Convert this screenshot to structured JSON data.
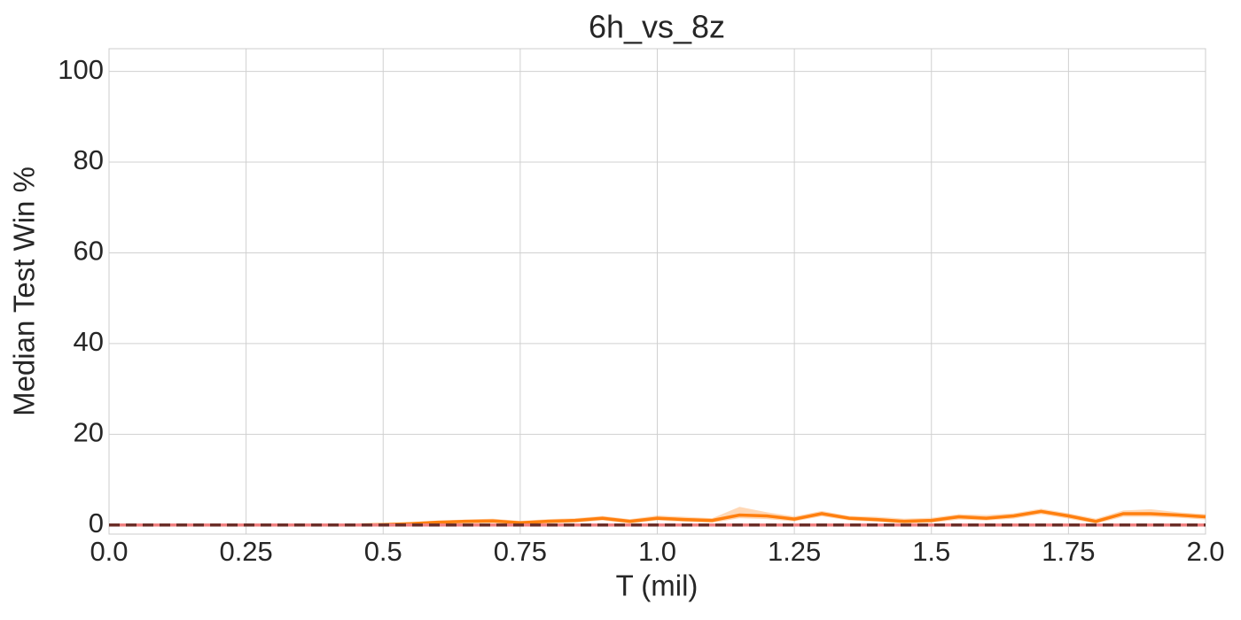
{
  "chart_data": {
    "type": "line",
    "title": "6h_vs_8z",
    "xlabel": "T (mil)",
    "ylabel": "Median Test Win %",
    "xlim": [
      0,
      2
    ],
    "ylim": [
      -2,
      105
    ],
    "xticks": [
      {
        "value": 0,
        "label": "0.0"
      },
      0.25,
      0.5,
      0.75,
      {
        "value": 1,
        "label": "1.0"
      },
      1.25,
      1.5,
      1.75,
      {
        "value": 2,
        "label": "2.0"
      }
    ],
    "yticks": [
      0,
      20,
      40,
      60,
      80,
      100
    ],
    "grid": true,
    "series": [
      {
        "color": "#ff7f0e",
        "linestyle": "solid",
        "x": [
          0,
          0.05,
          0.1,
          0.15,
          0.2,
          0.25,
          0.3,
          0.35,
          0.4,
          0.45,
          0.5,
          0.55,
          0.6,
          0.65,
          0.7,
          0.75,
          0.8,
          0.85,
          0.9,
          0.95,
          1.0,
          1.05,
          1.1,
          1.15,
          1.2,
          1.25,
          1.3,
          1.35,
          1.4,
          1.45,
          1.5,
          1.55,
          1.6,
          1.65,
          1.7,
          1.75,
          1.8,
          1.85,
          1.9,
          1.95,
          2.0
        ],
        "values": [
          0,
          0,
          0,
          0,
          0,
          0,
          0,
          0,
          0,
          0,
          0.1,
          0.3,
          0.6,
          0.8,
          0.9,
          0.5,
          0.8,
          1.0,
          1.5,
          0.8,
          1.5,
          1.2,
          1.0,
          2.2,
          2.0,
          1.3,
          2.5,
          1.5,
          1.2,
          0.8,
          1.0,
          1.8,
          1.5,
          2.0,
          3.0,
          2.0,
          0.8,
          2.5,
          2.5,
          2.2,
          1.8
        ],
        "lower": [
          0,
          0,
          0,
          0,
          0,
          0,
          0,
          0,
          0,
          0,
          0,
          0,
          0.2,
          0.3,
          0.4,
          0.1,
          0.3,
          0.5,
          1.0,
          0.3,
          1.0,
          0.7,
          0.5,
          1.5,
          1.3,
          0.8,
          1.9,
          1.0,
          0.7,
          0.3,
          0.5,
          1.2,
          1.0,
          1.4,
          2.4,
          1.4,
          0.3,
          1.8,
          1.8,
          1.6,
          1.2
        ],
        "upper": [
          0,
          0,
          0,
          0,
          0,
          0,
          0,
          0,
          0,
          0,
          0.3,
          0.6,
          1.0,
          1.2,
          1.4,
          0.9,
          1.3,
          1.5,
          2.0,
          1.3,
          2.1,
          1.8,
          1.5,
          4.0,
          2.8,
          1.9,
          3.1,
          2.0,
          1.8,
          1.4,
          1.6,
          2.4,
          2.2,
          2.6,
          3.6,
          2.6,
          1.4,
          3.2,
          3.5,
          2.8,
          2.4
        ]
      },
      {
        "color": "#f08080",
        "linestyle": "solid",
        "x": [
          0,
          2
        ],
        "values": [
          0,
          0
        ]
      },
      {
        "color": "#6b2e28",
        "linestyle": "dashed",
        "x": [
          0,
          2
        ],
        "values": [
          0,
          0
        ]
      }
    ]
  }
}
